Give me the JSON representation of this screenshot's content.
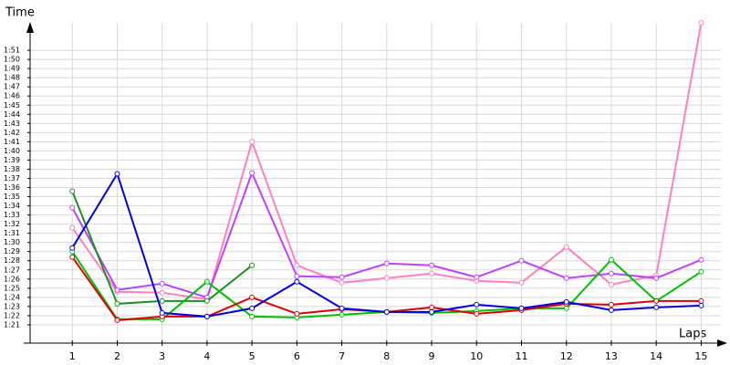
{
  "chart_data": {
    "type": "line",
    "x_label": "Laps",
    "y_label": "Time",
    "x": [
      1,
      2,
      3,
      4,
      5,
      6,
      7,
      8,
      9,
      10,
      11,
      12,
      13,
      14,
      15
    ],
    "xlim": [
      0,
      15.5
    ],
    "xticks": [
      1,
      2,
      3,
      4,
      5,
      6,
      7,
      8,
      9,
      10,
      11,
      12,
      13,
      14,
      15
    ],
    "ylim": [
      79,
      114
    ],
    "yticks": [
      {
        "value": 81,
        "label": "1:21"
      },
      {
        "value": 82,
        "label": "1:22"
      },
      {
        "value": 83,
        "label": "1:23"
      },
      {
        "value": 84,
        "label": "1:24"
      },
      {
        "value": 85,
        "label": "1:25"
      },
      {
        "value": 86,
        "label": "1:26"
      },
      {
        "value": 87,
        "label": "1:27"
      },
      {
        "value": 88,
        "label": "1:28"
      },
      {
        "value": 89,
        "label": "1:29"
      },
      {
        "value": 90,
        "label": "1:30"
      },
      {
        "value": 91,
        "label": "1:31"
      },
      {
        "value": 92,
        "label": "1:32"
      },
      {
        "value": 93,
        "label": "1:33"
      },
      {
        "value": 94,
        "label": "1:34"
      },
      {
        "value": 95,
        "label": "1:35"
      },
      {
        "value": 96,
        "label": "1:36"
      },
      {
        "value": 97,
        "label": "1:37"
      },
      {
        "value": 98,
        "label": "1:38"
      },
      {
        "value": 99,
        "label": "1:39"
      },
      {
        "value": 100,
        "label": "1:40"
      },
      {
        "value": 101,
        "label": "1:41"
      },
      {
        "value": 102,
        "label": "1:42"
      },
      {
        "value": 103,
        "label": "1:43"
      },
      {
        "value": 104,
        "label": "1:44"
      },
      {
        "value": 105,
        "label": "1:45"
      },
      {
        "value": 106,
        "label": "1:46"
      },
      {
        "value": 107,
        "label": "1:47"
      },
      {
        "value": 108,
        "label": "1:48"
      },
      {
        "value": 109,
        "label": "1:49"
      },
      {
        "value": 110,
        "label": "1:50"
      },
      {
        "value": 111,
        "label": "1:51"
      }
    ],
    "grid": true,
    "series": [
      {
        "color": "#ff80c0",
        "values": [
          91.6,
          84.6,
          84.5,
          83.8,
          101,
          87.5,
          85.6,
          86.1,
          86.6,
          85.8,
          85.6,
          89.5,
          85.4,
          86.4,
          114
        ]
      },
      {
        "color": "#c040ff",
        "values": [
          93.8,
          84.8,
          85.5,
          84,
          97.6,
          86.3,
          86.2,
          87.7,
          87.5,
          86.2,
          88,
          86.1,
          86.6,
          86.1,
          88.1
        ]
      },
      {
        "color": "#209020",
        "values": [
          95.6,
          83.3,
          83.6,
          83.6,
          87.5,
          null,
          null,
          null,
          null,
          null,
          null,
          null,
          null,
          null,
          null
        ]
      },
      {
        "color": "#00c000",
        "values": [
          89,
          81.6,
          81.6,
          85.7,
          81.9,
          81.8,
          82.1,
          82.4,
          82.3,
          82.5,
          82.8,
          82.8,
          88.1,
          83.6,
          86.8
        ]
      },
      {
        "color": "#e00000",
        "values": [
          88.4,
          81.5,
          81.9,
          81.9,
          84,
          82.2,
          82.7,
          82.4,
          82.9,
          82.2,
          82.6,
          83.3,
          83.2,
          83.6,
          83.6
        ]
      },
      {
        "color": "#0000e0",
        "values": [
          89.4,
          97.5,
          82.3,
          81.9,
          82.8,
          85.7,
          82.8,
          82.4,
          82.4,
          83.2,
          82.8,
          83.5,
          82.6,
          82.9,
          83.1
        ]
      }
    ]
  }
}
